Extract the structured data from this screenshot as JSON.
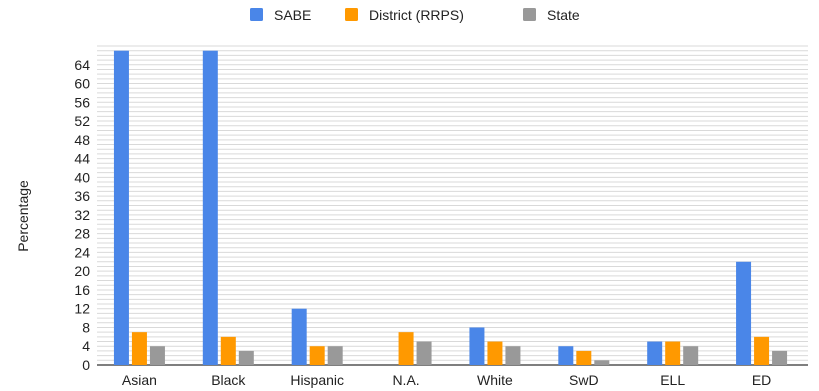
{
  "chart_data": {
    "type": "bar",
    "title": "",
    "xlabel": "",
    "ylabel": "Percentage",
    "ylim": [
      0,
      68
    ],
    "yticks": [
      0,
      4,
      8,
      12,
      16,
      20,
      24,
      28,
      32,
      36,
      40,
      44,
      48,
      52,
      56,
      60,
      64
    ],
    "grid": true,
    "legend_position": "top",
    "categories": [
      "Asian",
      "Black",
      "Hispanic",
      "N.A.",
      "White",
      "SwD",
      "ELL",
      "ED"
    ],
    "series": [
      {
        "name": "SABE",
        "color": "#4a86e8",
        "values": [
          67,
          67,
          12,
          0,
          8,
          4,
          5,
          22
        ]
      },
      {
        "name": "District (RRPS)",
        "color": "#ff9900",
        "values": [
          7,
          6,
          4,
          7,
          5,
          3,
          5,
          6
        ]
      },
      {
        "name": "State",
        "color": "#999999",
        "values": [
          4,
          3,
          4,
          5,
          4,
          1,
          4,
          3
        ]
      }
    ]
  }
}
